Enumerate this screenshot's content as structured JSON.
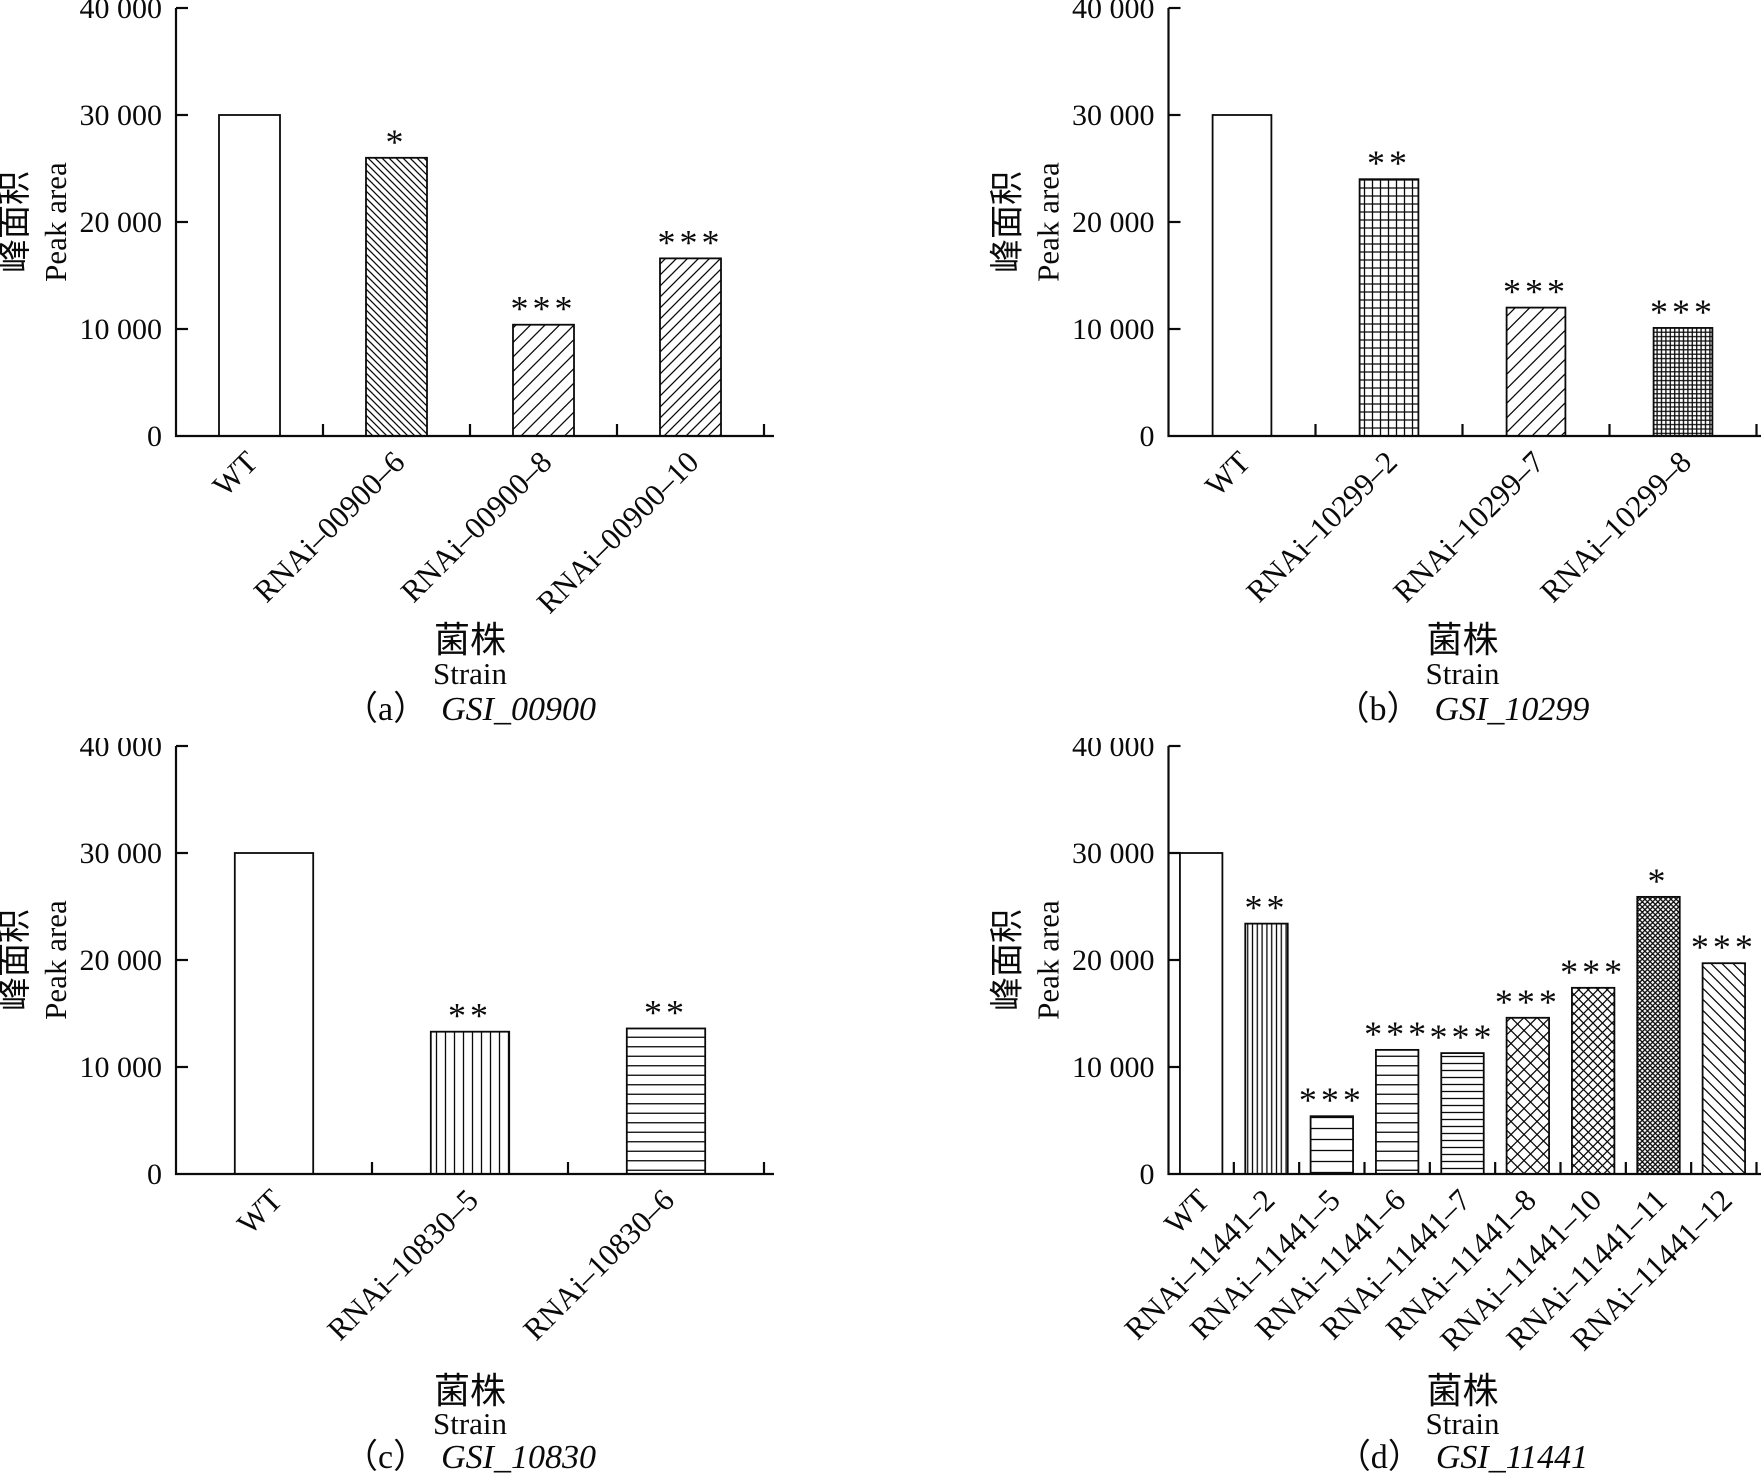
{
  "figure": {
    "background": "#ffffff",
    "ink": "#0a0a0a",
    "description": "Four-panel bar figure of peak area by strain"
  },
  "chart_data": [
    {
      "type": "bar",
      "panel": "a",
      "caption_prefix": "（a）",
      "caption_gene": "GSI_00900",
      "xlabel_zh": "菌株",
      "xlabel_en": "Strain",
      "ylabel_zh": "峰面积",
      "ylabel_en": "Peak area",
      "ylim": [
        0,
        40000
      ],
      "yticks": [
        0,
        10000,
        20000,
        30000,
        40000
      ],
      "ytick_labels": [
        "0",
        "10 000",
        "20 000",
        "30 000",
        "40 000"
      ],
      "grid": false,
      "categories": [
        "WT",
        "RNAi–00900–6",
        "RNAi–00900–8",
        "RNAi–00900–10"
      ],
      "values": [
        30000,
        26000,
        10400,
        16600
      ],
      "significance": [
        "",
        "*",
        "***",
        "***"
      ],
      "hatches": [
        "solid-white",
        "diag-back-fine",
        "diag-fwd-wide",
        "diag-fwd-medium"
      ]
    },
    {
      "type": "bar",
      "panel": "b",
      "caption_prefix": "（b）",
      "caption_gene": "GSI_10299",
      "xlabel_zh": "菌株",
      "xlabel_en": "Strain",
      "ylabel_zh": "峰面积",
      "ylabel_en": "Peak area",
      "ylim": [
        0,
        40000
      ],
      "yticks": [
        0,
        10000,
        20000,
        30000,
        40000
      ],
      "ytick_labels": [
        "0",
        "10 000",
        "20 000",
        "30 000",
        "40 000"
      ],
      "grid": false,
      "categories": [
        "WT",
        "RNAi–10299–2",
        "RNAi–10299–7",
        "RNAi–10299–8"
      ],
      "values": [
        30000,
        24000,
        12000,
        10100
      ],
      "significance": [
        "",
        "**",
        "***",
        "***"
      ],
      "hatches": [
        "solid-white",
        "grid-medium",
        "diag-fwd-wide",
        "grid-fine"
      ]
    },
    {
      "type": "bar",
      "panel": "c",
      "caption_prefix": "（c）",
      "caption_gene": "GSI_10830",
      "xlabel_zh": "菌株",
      "xlabel_en": "Strain",
      "ylabel_zh": "峰面积",
      "ylabel_en": "Peak area",
      "ylim": [
        0,
        40000
      ],
      "yticks": [
        0,
        10000,
        20000,
        30000,
        40000
      ],
      "ytick_labels": [
        "0",
        "10 000",
        "20 000",
        "30 000",
        "40 000"
      ],
      "grid": false,
      "categories": [
        "WT",
        "RNAi–10830–5",
        "RNAi–10830–6"
      ],
      "values": [
        30000,
        13300,
        13600
      ],
      "significance": [
        "",
        "**",
        "**"
      ],
      "hatches": [
        "solid-white",
        "vertical-medium",
        "horizontal-medium"
      ]
    },
    {
      "type": "bar",
      "panel": "d",
      "caption_prefix": "（d）",
      "caption_gene": "GSI_11441",
      "xlabel_zh": "菌株",
      "xlabel_en": "Strain",
      "ylabel_zh": "峰面积",
      "ylabel_en": "Peak area",
      "ylim": [
        0,
        40000
      ],
      "yticks": [
        0,
        10000,
        20000,
        30000,
        40000
      ],
      "ytick_labels": [
        "0",
        "10 000",
        "20 000",
        "30 000",
        "40 000"
      ],
      "grid": false,
      "categories": [
        "WT",
        "RNAi–11441–2",
        "RNAi–11441–5",
        "RNAi–11441–6",
        "RNAi–11441–7",
        "RNAi–11441–8",
        "RNAi–11441–10",
        "RNAi–11441–11",
        "RNAi–11441–12"
      ],
      "values": [
        30000,
        23400,
        5400,
        11600,
        11300,
        14600,
        17400,
        25900,
        19700
      ],
      "significance": [
        "",
        "**",
        "***",
        "***",
        "***",
        "***",
        "***",
        "*",
        "***"
      ],
      "hatches": [
        "solid-white",
        "vertical-fine",
        "horizontal-wide",
        "horizontal-medium",
        "horizontal-fine",
        "diamond-wide",
        "diamond-medium",
        "diamond-fine",
        "diag-back-medium"
      ]
    }
  ]
}
